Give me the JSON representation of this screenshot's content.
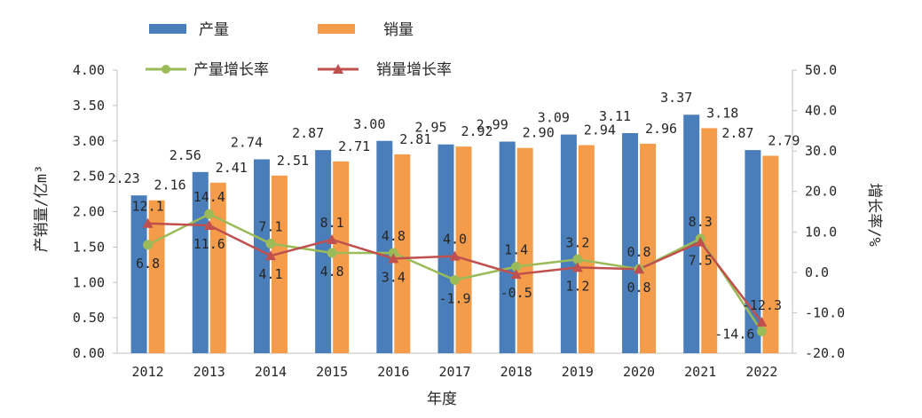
{
  "chart_data": {
    "type": "bar-line-combo",
    "categories": [
      "2012",
      "2013",
      "2014",
      "2015",
      "2016",
      "2017",
      "2018",
      "2019",
      "2020",
      "2021",
      "2022"
    ],
    "bar_series": [
      {
        "name": "产量",
        "color": "#4a7ebb",
        "axis": "left",
        "values": [
          2.23,
          2.56,
          2.74,
          2.87,
          3.0,
          2.95,
          2.99,
          3.09,
          3.11,
          3.37,
          2.87
        ],
        "labels": [
          "2.23",
          "2.56",
          "2.74",
          "2.87",
          "3.00",
          "2.95",
          "2.99",
          "3.09",
          "3.11",
          "3.37",
          "2.87"
        ]
      },
      {
        "name": "销量",
        "color": "#f59c4b",
        "axis": "left",
        "values": [
          2.16,
          2.41,
          2.51,
          2.71,
          2.81,
          2.92,
          2.9,
          2.94,
          2.96,
          3.18,
          2.79
        ],
        "labels": [
          "2.16",
          "2.41",
          "2.51",
          "2.71",
          "2.81",
          "2.92",
          "2.90",
          "2.94",
          "2.96",
          "3.18",
          "2.79"
        ]
      }
    ],
    "line_series": [
      {
        "name": "产量增长率",
        "color": "#9bbb59",
        "marker": "circle",
        "axis": "right",
        "values": [
          6.8,
          14.4,
          7.1,
          4.8,
          4.8,
          -1.9,
          1.4,
          3.2,
          0.8,
          8.3,
          -14.6
        ],
        "labels": [
          "6.8",
          "14.4",
          "7.1",
          "4.8",
          "4.8",
          "-1.9",
          "1.4",
          "3.2",
          "0.8",
          "8.3",
          "-14.6"
        ]
      },
      {
        "name": "销量增长率",
        "color": "#c0504d",
        "marker": "triangle",
        "axis": "right",
        "values": [
          12.1,
          11.6,
          4.1,
          8.1,
          3.4,
          4.0,
          -0.5,
          1.2,
          0.8,
          7.5,
          -12.3
        ],
        "labels": [
          "12.1",
          "11.6",
          "4.1",
          "8.1",
          "3.4",
          "4.0",
          "-0.5",
          "1.2",
          "0.8",
          "7.5",
          "-12.3"
        ]
      }
    ],
    "y_left": {
      "label": "产销量/亿m³",
      "min": 0,
      "max": 4,
      "ticks": [
        "0.00",
        "0.50",
        "1.00",
        "1.50",
        "2.00",
        "2.50",
        "3.00",
        "3.50",
        "4.00"
      ]
    },
    "y_right": {
      "label": "增长率/%",
      "min": -20,
      "max": 50,
      "ticks": [
        "-20.0",
        "-10.0",
        "0.0",
        "10.0",
        "20.0",
        "30.0",
        "40.0",
        "50.0"
      ]
    },
    "xlabel": "年度",
    "grid": false,
    "legend": "top"
  }
}
